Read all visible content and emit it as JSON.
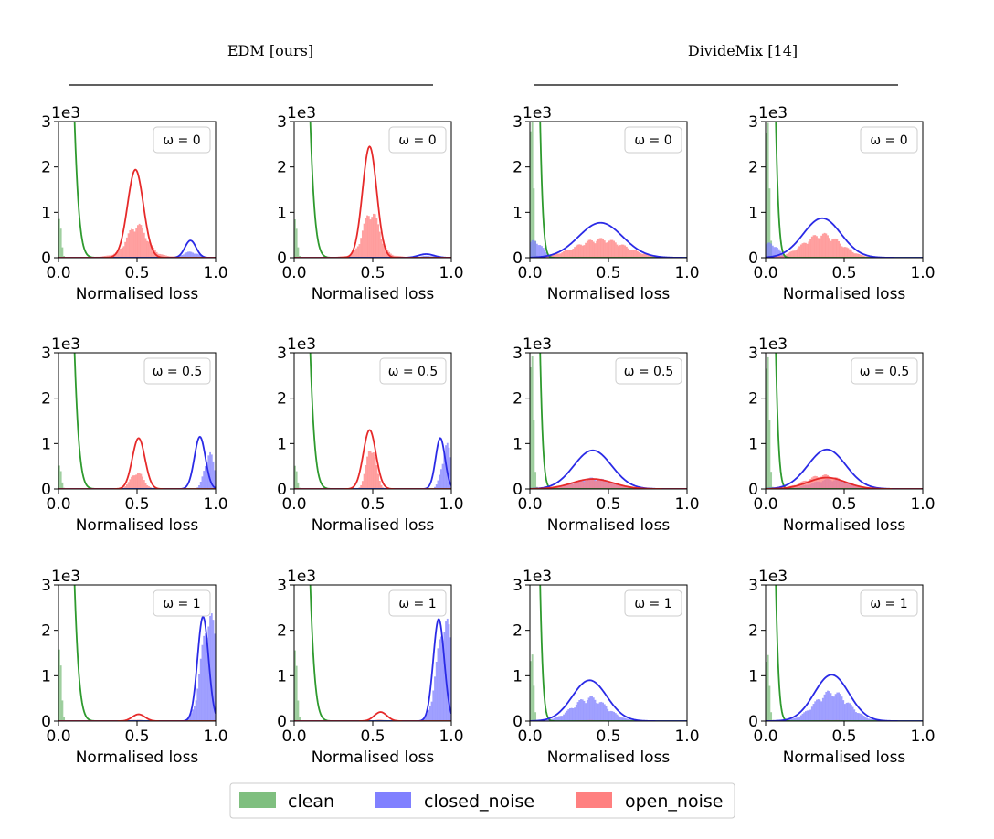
{
  "figure": {
    "group_titles": [
      "EDM [ours]",
      "DivideMix [14]"
    ],
    "legend": [
      {
        "label": "clean",
        "color": "#2e9a2e",
        "fill": "#7fbf7f"
      },
      {
        "label": "closed_noise",
        "color": "#2a2ae6",
        "fill": "#8080ff"
      },
      {
        "label": "open_noise",
        "color": "#e62a2a",
        "fill": "#ff8080"
      }
    ]
  },
  "chart_data": [
    {
      "type": "histogram",
      "group": "EDM [ours]",
      "omega_label": "ω = 0",
      "xlabel": "Normalised loss",
      "y_multiplier": "1e3",
      "xlim": [
        0,
        1
      ],
      "ylim": [
        0,
        3
      ],
      "xticks": [
        "0.0",
        "0.5",
        "1.0"
      ],
      "yticks": [
        "0",
        "1",
        "2",
        "3"
      ],
      "curves": {
        "clean": {
          "mu": 0.0,
          "sigma": 0.055,
          "amp": 17
        },
        "closed_noise": {
          "mu": 0.84,
          "sigma": 0.035,
          "amp": 0.38
        },
        "open_noise": {
          "mu": 0.49,
          "sigma": 0.05,
          "amp": 1.94
        }
      },
      "hist": {
        "clean": {
          "mu": 0.005,
          "sigma": 0.012,
          "amp": 0.8
        },
        "closed_noise": {
          "mu": 0.84,
          "sigma": 0.05,
          "amp": 0.12
        },
        "open_noise": {
          "mu": 0.5,
          "sigma": 0.06,
          "amp": 0.6,
          "base": 0.08
        }
      }
    },
    {
      "type": "histogram",
      "group": "EDM [ours]",
      "omega_label": "ω = 0",
      "xlabel": "Normalised loss",
      "y_multiplier": "1e3",
      "xlim": [
        0,
        1
      ],
      "ylim": [
        0,
        3
      ],
      "xticks": [
        "0.0",
        "0.5",
        "1.0"
      ],
      "yticks": [
        "0",
        "1",
        "2",
        "3"
      ],
      "curves": {
        "clean": {
          "mu": 0.0,
          "sigma": 0.055,
          "amp": 17
        },
        "closed_noise": {
          "mu": 0.84,
          "sigma": 0.05,
          "amp": 0.08
        },
        "open_noise": {
          "mu": 0.48,
          "sigma": 0.045,
          "amp": 2.45
        }
      },
      "hist": {
        "clean": {
          "mu": 0.005,
          "sigma": 0.012,
          "amp": 0.8
        },
        "closed_noise": {
          "mu": 0.85,
          "sigma": 0.05,
          "amp": 0.04
        },
        "open_noise": {
          "mu": 0.49,
          "sigma": 0.05,
          "amp": 0.9,
          "base": 0.06
        }
      }
    },
    {
      "type": "histogram",
      "group": "DivideMix [14]",
      "omega_label": "ω = 0",
      "xlabel": "Normalised loss",
      "y_multiplier": "1e3",
      "xlim": [
        0,
        1
      ],
      "ylim": [
        0,
        3
      ],
      "xticks": [
        "0.0",
        "0.5",
        "1.0"
      ],
      "yticks": [
        "0",
        "1",
        "2",
        "3"
      ],
      "curves": {
        "clean": {
          "mu": 0.0,
          "sigma": 0.035,
          "amp": 17
        },
        "closed_noise": {
          "mu": 0.45,
          "sigma": 0.14,
          "amp": 0.77
        },
        "open_noise": {
          "mu": 0.45,
          "sigma": 0.16,
          "amp": 0.0
        }
      },
      "hist": {
        "clean": {
          "mu": 0.01,
          "sigma": 0.012,
          "amp": 2.9
        },
        "closed_noise": {
          "mu": 0.03,
          "sigma": 0.05,
          "amp": 0.35
        },
        "open_noise": {
          "mu": 0.45,
          "sigma": 0.16,
          "amp": 0.38
        }
      }
    },
    {
      "type": "histogram",
      "group": "DivideMix [14]",
      "omega_label": "ω = 0",
      "xlabel": "Normalised loss",
      "y_multiplier": "1e3",
      "xlim": [
        0,
        1
      ],
      "ylim": [
        0,
        3
      ],
      "xticks": [
        "0.0",
        "0.5",
        "1.0"
      ],
      "yticks": [
        "0",
        "1",
        "2",
        "3"
      ],
      "curves": {
        "clean": {
          "mu": 0.0,
          "sigma": 0.035,
          "amp": 17
        },
        "closed_noise": {
          "mu": 0.36,
          "sigma": 0.12,
          "amp": 0.87
        },
        "open_noise": {
          "mu": 0.36,
          "sigma": 0.14,
          "amp": 0.0
        }
      },
      "hist": {
        "clean": {
          "mu": 0.01,
          "sigma": 0.012,
          "amp": 2.9
        },
        "closed_noise": {
          "mu": 0.03,
          "sigma": 0.05,
          "amp": 0.3
        },
        "open_noise": {
          "mu": 0.36,
          "sigma": 0.12,
          "amp": 0.48
        }
      }
    },
    {
      "type": "histogram",
      "group": "EDM [ours]",
      "omega_label": "ω = 0.5",
      "xlabel": "Normalised loss",
      "y_multiplier": "1e3",
      "xlim": [
        0,
        1
      ],
      "ylim": [
        0,
        3
      ],
      "xticks": [
        "0.0",
        "0.5",
        "1.0"
      ],
      "yticks": [
        "0",
        "1",
        "2",
        "3"
      ],
      "curves": {
        "clean": {
          "mu": 0.0,
          "sigma": 0.055,
          "amp": 17
        },
        "closed_noise": {
          "mu": 0.9,
          "sigma": 0.035,
          "amp": 1.15
        },
        "open_noise": {
          "mu": 0.51,
          "sigma": 0.04,
          "amp": 1.12
        }
      },
      "hist": {
        "clean": {
          "mu": 0.005,
          "sigma": 0.012,
          "amp": 0.5
        },
        "closed_noise": {
          "mu": 0.96,
          "sigma": 0.03,
          "amp": 0.75
        },
        "open_noise": {
          "mu": 0.5,
          "sigma": 0.04,
          "amp": 0.35
        }
      }
    },
    {
      "type": "histogram",
      "group": "EDM [ours]",
      "omega_label": "ω = 0.5",
      "xlabel": "Normalised loss",
      "y_multiplier": "1e3",
      "xlim": [
        0,
        1
      ],
      "ylim": [
        0,
        3
      ],
      "xticks": [
        "0.0",
        "0.5",
        "1.0"
      ],
      "yticks": [
        "0",
        "1",
        "2",
        "3"
      ],
      "curves": {
        "clean": {
          "mu": 0.0,
          "sigma": 0.055,
          "amp": 17
        },
        "closed_noise": {
          "mu": 0.93,
          "sigma": 0.03,
          "amp": 1.12
        },
        "open_noise": {
          "mu": 0.48,
          "sigma": 0.04,
          "amp": 1.3
        }
      },
      "hist": {
        "clean": {
          "mu": 0.005,
          "sigma": 0.012,
          "amp": 0.5
        },
        "closed_noise": {
          "mu": 0.97,
          "sigma": 0.03,
          "amp": 0.9
        },
        "open_noise": {
          "mu": 0.49,
          "sigma": 0.03,
          "amp": 0.9
        }
      }
    },
    {
      "type": "histogram",
      "group": "DivideMix [14]",
      "omega_label": "ω = 0.5",
      "xlabel": "Normalised loss",
      "y_multiplier": "1e3",
      "xlim": [
        0,
        1
      ],
      "ylim": [
        0,
        3
      ],
      "xticks": [
        "0.0",
        "0.5",
        "1.0"
      ],
      "yticks": [
        "0",
        "1",
        "2",
        "3"
      ],
      "curves": {
        "clean": {
          "mu": 0.0,
          "sigma": 0.035,
          "amp": 17
        },
        "closed_noise": {
          "mu": 0.4,
          "sigma": 0.12,
          "amp": 0.85
        },
        "open_noise": {
          "mu": 0.4,
          "sigma": 0.13,
          "amp": 0.22
        }
      },
      "hist": {
        "clean": {
          "mu": 0.01,
          "sigma": 0.012,
          "amp": 2.9
        },
        "closed_noise": {
          "mu": 0.4,
          "sigma": 0.12,
          "amp": 0.22
        },
        "open_noise": {
          "mu": 0.4,
          "sigma": 0.13,
          "amp": 0.2
        }
      }
    },
    {
      "type": "histogram",
      "group": "DivideMix [14]",
      "omega_label": "ω = 0.5",
      "xlabel": "Normalised loss",
      "y_multiplier": "1e3",
      "xlim": [
        0,
        1
      ],
      "ylim": [
        0,
        3
      ],
      "xticks": [
        "0.0",
        "0.5",
        "1.0"
      ],
      "yticks": [
        "0",
        "1",
        "2",
        "3"
      ],
      "curves": {
        "clean": {
          "mu": 0.0,
          "sigma": 0.035,
          "amp": 17
        },
        "closed_noise": {
          "mu": 0.39,
          "sigma": 0.12,
          "amp": 0.87
        },
        "open_noise": {
          "mu": 0.39,
          "sigma": 0.12,
          "amp": 0.25
        }
      },
      "hist": {
        "clean": {
          "mu": 0.01,
          "sigma": 0.012,
          "amp": 2.9
        },
        "closed_noise": {
          "mu": 0.42,
          "sigma": 0.12,
          "amp": 0.2
        },
        "open_noise": {
          "mu": 0.37,
          "sigma": 0.12,
          "amp": 0.28
        }
      }
    },
    {
      "type": "histogram",
      "group": "EDM [ours]",
      "omega_label": "ω = 1",
      "xlabel": "Normalised loss",
      "y_multiplier": "1e3",
      "xlim": [
        0,
        1
      ],
      "ylim": [
        0,
        3
      ],
      "xticks": [
        "0.0",
        "0.5",
        "1.0"
      ],
      "yticks": [
        "0",
        "1",
        "2",
        "3"
      ],
      "curves": {
        "clean": {
          "mu": 0.0,
          "sigma": 0.055,
          "amp": 17
        },
        "closed_noise": {
          "mu": 0.92,
          "sigma": 0.035,
          "amp": 2.3
        },
        "open_noise": {
          "mu": 0.51,
          "sigma": 0.04,
          "amp": 0.15
        }
      },
      "hist": {
        "clean": {
          "mu": 0.005,
          "sigma": 0.012,
          "amp": 1.6
        },
        "closed_noise": {
          "mu": 0.96,
          "sigma": 0.05,
          "amp": 2.2
        },
        "open_noise": {
          "mu": 0.5,
          "sigma": 0.04,
          "amp": 0.03
        }
      }
    },
    {
      "type": "histogram",
      "group": "EDM [ours]",
      "omega_label": "ω = 1",
      "xlabel": "Normalised loss",
      "y_multiplier": "1e3",
      "xlim": [
        0,
        1
      ],
      "ylim": [
        0,
        3
      ],
      "xticks": [
        "0.0",
        "0.5",
        "1.0"
      ],
      "yticks": [
        "0",
        "1",
        "2",
        "3"
      ],
      "curves": {
        "clean": {
          "mu": 0.0,
          "sigma": 0.055,
          "amp": 17
        },
        "closed_noise": {
          "mu": 0.92,
          "sigma": 0.035,
          "amp": 2.25
        },
        "open_noise": {
          "mu": 0.55,
          "sigma": 0.04,
          "amp": 0.2
        }
      },
      "hist": {
        "clean": {
          "mu": 0.005,
          "sigma": 0.012,
          "amp": 1.6
        },
        "closed_noise": {
          "mu": 0.96,
          "sigma": 0.05,
          "amp": 2.1
        },
        "open_noise": {
          "mu": 0.55,
          "sigma": 0.04,
          "amp": 0.03
        }
      }
    },
    {
      "type": "histogram",
      "group": "DivideMix [14]",
      "omega_label": "ω = 1",
      "xlabel": "Normalised loss",
      "y_multiplier": "1e3",
      "xlim": [
        0,
        1
      ],
      "ylim": [
        0,
        3
      ],
      "xticks": [
        "0.0",
        "0.5",
        "1.0"
      ],
      "yticks": [
        "0",
        "1",
        "2",
        "3"
      ],
      "curves": {
        "clean": {
          "mu": 0.0,
          "sigma": 0.035,
          "amp": 17
        },
        "closed_noise": {
          "mu": 0.38,
          "sigma": 0.11,
          "amp": 0.9
        },
        "open_noise": {
          "mu": 0.38,
          "sigma": 0.12,
          "amp": 0.0
        }
      },
      "hist": {
        "clean": {
          "mu": 0.01,
          "sigma": 0.012,
          "amp": 1.5
        },
        "closed_noise": {
          "mu": 0.38,
          "sigma": 0.11,
          "amp": 0.48
        },
        "open_noise": {
          "mu": 0.38,
          "sigma": 0.12,
          "amp": 0.02
        }
      }
    },
    {
      "type": "histogram",
      "group": "DivideMix [14]",
      "omega_label": "ω = 1",
      "xlabel": "Normalised loss",
      "y_multiplier": "1e3",
      "xlim": [
        0,
        1
      ],
      "ylim": [
        0,
        3
      ],
      "xticks": [
        "0.0",
        "0.5",
        "1.0"
      ],
      "yticks": [
        "0",
        "1",
        "2",
        "3"
      ],
      "curves": {
        "clean": {
          "mu": 0.0,
          "sigma": 0.035,
          "amp": 17
        },
        "closed_noise": {
          "mu": 0.42,
          "sigma": 0.11,
          "amp": 1.02
        },
        "open_noise": {
          "mu": 0.42,
          "sigma": 0.12,
          "amp": 0.0
        }
      },
      "hist": {
        "clean": {
          "mu": 0.01,
          "sigma": 0.012,
          "amp": 1.5
        },
        "closed_noise": {
          "mu": 0.42,
          "sigma": 0.11,
          "amp": 0.6
        },
        "open_noise": {
          "mu": 0.42,
          "sigma": 0.12,
          "amp": 0.02
        }
      }
    }
  ]
}
